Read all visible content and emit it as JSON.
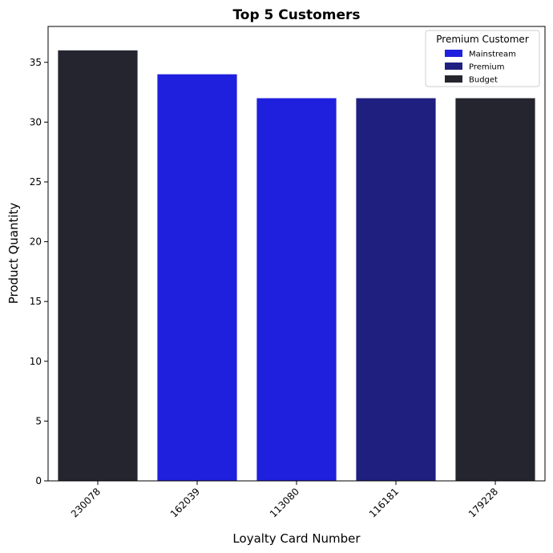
{
  "chart_data": {
    "type": "bar",
    "title": "Top 5 Customers",
    "xlabel": "Loyalty Card Number",
    "ylabel": "Product Quantity",
    "categories": [
      "230078",
      "162039",
      "113080",
      "116181",
      "179228"
    ],
    "values": [
      36,
      34,
      32,
      32,
      32
    ],
    "bar_groups": [
      "Budget",
      "Mainstream",
      "Mainstream",
      "Premium",
      "Budget"
    ],
    "ylim": [
      0,
      38
    ],
    "yticks": [
      0,
      5,
      10,
      15,
      20,
      25,
      30,
      35
    ],
    "grid": false,
    "legend": {
      "title": "Premium Customer",
      "placement": "top-right",
      "entries": [
        {
          "label": "Mainstream",
          "color": "#1f1fde"
        },
        {
          "label": "Premium",
          "color": "#1f1f80"
        },
        {
          "label": "Budget",
          "color": "#25252f"
        }
      ]
    }
  }
}
